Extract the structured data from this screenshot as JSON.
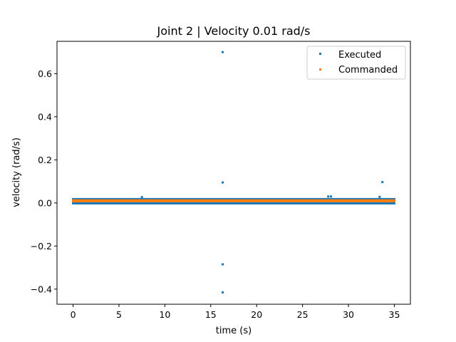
{
  "chart_data": {
    "type": "scatter",
    "title": "Joint 2 | Velocity 0.01 rad/s",
    "xlabel": "time (s)",
    "ylabel": "velocity (rad/s)",
    "xlim": [
      -1.75,
      36.75
    ],
    "ylim": [
      -0.47,
      0.75
    ],
    "xticks": [
      0,
      5,
      10,
      15,
      20,
      25,
      30,
      35
    ],
    "xtick_labels": [
      "0",
      "5",
      "10",
      "15",
      "20",
      "25",
      "30",
      "35"
    ],
    "yticks": [
      -0.4,
      -0.2,
      0.0,
      0.2,
      0.4,
      0.6
    ],
    "ytick_labels": [
      "−0.4",
      "−0.2",
      "0.0",
      "0.2",
      "0.4",
      "0.6"
    ],
    "grid": false,
    "legend_position": "upper right",
    "series": [
      {
        "name": "Executed",
        "color": "#1f77b4",
        "band": {
          "x_start": 0.0,
          "x_end": 35.0,
          "y_low": -0.002,
          "y_high": 0.018
        },
        "points": [
          {
            "x": 16.3,
            "y": 0.7
          },
          {
            "x": 16.3,
            "y": 0.095
          },
          {
            "x": 33.7,
            "y": 0.097
          },
          {
            "x": 16.3,
            "y": -0.285
          },
          {
            "x": 16.3,
            "y": -0.415
          },
          {
            "x": 27.8,
            "y": 0.03
          },
          {
            "x": 28.1,
            "y": 0.03
          },
          {
            "x": 7.5,
            "y": 0.027
          },
          {
            "x": 33.4,
            "y": 0.028
          }
        ]
      },
      {
        "name": "Commanded",
        "color": "#ff7f0e",
        "band": {
          "x_start": 0.0,
          "x_end": 35.0,
          "y_low": 0.008,
          "y_high": 0.012
        },
        "points": []
      }
    ]
  }
}
